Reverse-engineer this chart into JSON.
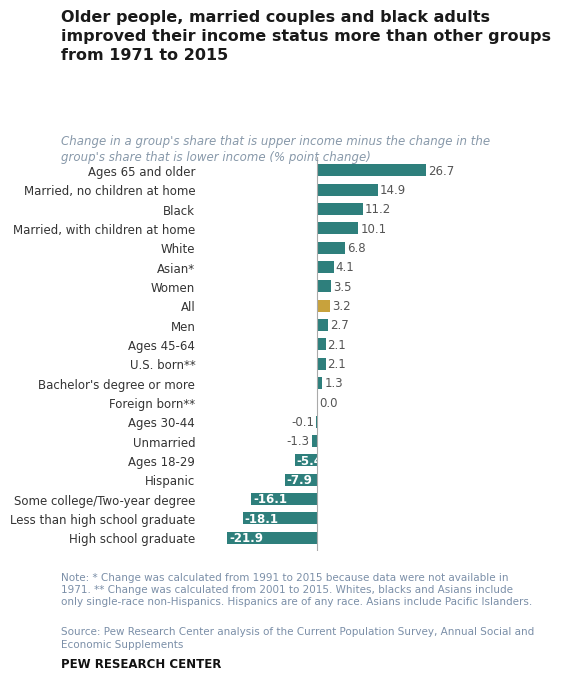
{
  "title": "Older people, married couples and black adults\nimproved their income status more than other groups\nfrom 1971 to 2015",
  "subtitle": "Change in a group's share that is upper income minus the change in the\ngroup's share that is lower income (% point change)",
  "categories": [
    "Ages 65 and older",
    "Married, no children at home",
    "Black",
    "Married, with children at home",
    "White",
    "Asian*",
    "Women",
    "All",
    "Men",
    "Ages 45-64",
    "U.S. born**",
    "Bachelor's degree or more",
    "Foreign born**",
    "Ages 30-44",
    "Unmarried",
    "Ages 18-29",
    "Hispanic",
    "Some college/Two-year degree",
    "Less than high school graduate",
    "High school graduate"
  ],
  "values": [
    26.7,
    14.9,
    11.2,
    10.1,
    6.8,
    4.1,
    3.5,
    3.2,
    2.7,
    2.1,
    2.1,
    1.3,
    0.0,
    -0.1,
    -1.3,
    -5.4,
    -7.9,
    -16.1,
    -18.1,
    -21.9
  ],
  "bar_colors": [
    "#2e7f7c",
    "#2e7f7c",
    "#2e7f7c",
    "#2e7f7c",
    "#2e7f7c",
    "#2e7f7c",
    "#2e7f7c",
    "#c8a23c",
    "#2e7f7c",
    "#2e7f7c",
    "#2e7f7c",
    "#2e7f7c",
    "#2e7f7c",
    "#2e7f7c",
    "#2e7f7c",
    "#2e7f7c",
    "#2e7f7c",
    "#2e7f7c",
    "#2e7f7c",
    "#2e7f7c"
  ],
  "note": "Note: * Change was calculated from 1991 to 2015 because data were not available in\n1971. ** Change was calculated from 2001 to 2015. Whites, blacks and Asians include\nonly single-race non-Hispanics. Hispanics are of any race. Asians include Pacific Islanders.",
  "source": "Source: Pew Research Center analysis of the Current Population Survey, Annual Social and\nEconomic Supplements",
  "logo": "PEW RESEARCH CENTER",
  "background_color": "#ffffff",
  "title_fontsize": 11.5,
  "subtitle_fontsize": 8.5,
  "label_fontsize": 8.5,
  "value_fontsize": 8.5,
  "note_fontsize": 7.5,
  "note_color": "#7b8fa8",
  "source_color": "#7b8fa8",
  "xlim": [
    -28,
    33
  ]
}
